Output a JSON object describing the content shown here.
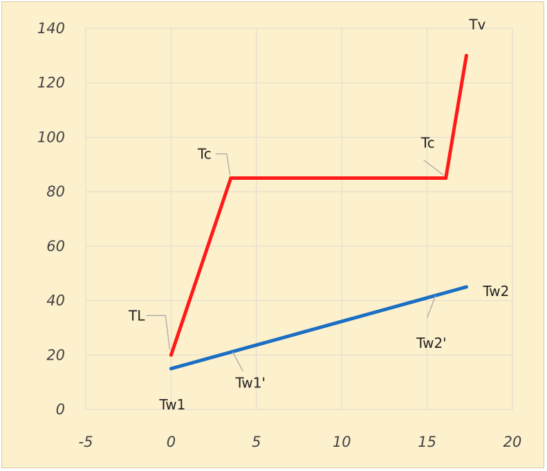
{
  "chart_data": {
    "type": "line",
    "title": "",
    "xlabel": "",
    "ylabel": "",
    "xlim": [
      -5,
      20
    ],
    "ylim": [
      0,
      140
    ],
    "x_ticks": [
      -5,
      0,
      5,
      10,
      15,
      20
    ],
    "y_ticks": [
      0,
      20,
      40,
      60,
      80,
      100,
      120,
      140
    ],
    "x_tick_labels": [
      "-5",
      "0",
      "5",
      "10",
      "15",
      "20"
    ],
    "y_tick_labels": [
      "0",
      "20",
      "40",
      "60",
      "80",
      "100",
      "120",
      "140"
    ],
    "grid": true,
    "legend": "none",
    "series": [
      {
        "color": "#ff1a1a",
        "points": [
          {
            "x": 0,
            "y": 20
          },
          {
            "x": 3.5,
            "y": 85
          },
          {
            "x": 16.1,
            "y": 85
          },
          {
            "x": 17.3,
            "y": 130
          }
        ]
      },
      {
        "color": "#1a6fc4",
        "points": [
          {
            "x": 0,
            "y": 15
          },
          {
            "x": 17.3,
            "y": 45
          }
        ]
      }
    ],
    "annotations": [
      {
        "id": "tl",
        "text": "TL",
        "x": 0,
        "y": 20
      },
      {
        "id": "tc1",
        "text": "Tc",
        "x": 3.5,
        "y": 85
      },
      {
        "id": "tc2",
        "text": "Tc",
        "x": 16.1,
        "y": 85
      },
      {
        "id": "tv",
        "text": "Tv",
        "x": 17.3,
        "y": 130
      },
      {
        "id": "tw1",
        "text": "Tw1",
        "x": 0,
        "y": 15
      },
      {
        "id": "tw1p",
        "text": "Tw1'",
        "x": 3.6,
        "y": 21.2
      },
      {
        "id": "tw2",
        "text": "Tw2",
        "x": 17.3,
        "y": 45
      },
      {
        "id": "tw2p",
        "text": "Tw2'",
        "x": 15.5,
        "y": 41.9
      }
    ]
  }
}
